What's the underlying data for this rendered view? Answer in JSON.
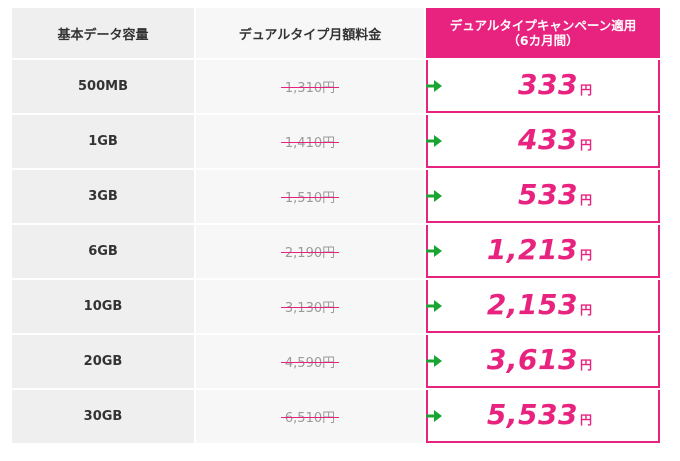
{
  "header": {
    "col_capacity": "基本データ容量",
    "col_monthly": "デュアルタイプ月額料金",
    "col_campaign_line1": "デュアルタイプキャンペーン適用",
    "col_campaign_line2": "（6カ月間）"
  },
  "rows": [
    {
      "capacity": "500MB",
      "regular_price": "1,310円",
      "campaign_price": "333",
      "unit": "円"
    },
    {
      "capacity": "1GB",
      "regular_price": "1,410円",
      "campaign_price": "433",
      "unit": "円"
    },
    {
      "capacity": "3GB",
      "regular_price": "1,510円",
      "campaign_price": "533",
      "unit": "円"
    },
    {
      "capacity": "6GB",
      "regular_price": "2,190円",
      "campaign_price": "1,213",
      "unit": "円"
    },
    {
      "capacity": "10GB",
      "regular_price": "3,130円",
      "campaign_price": "2,153",
      "unit": "円"
    },
    {
      "capacity": "20GB",
      "regular_price": "4,590円",
      "campaign_price": "3,613",
      "unit": "円"
    },
    {
      "capacity": "30GB",
      "regular_price": "6,510円",
      "campaign_price": "5,533",
      "unit": "円"
    }
  ],
  "colors": {
    "accent": "#e8237f",
    "arrow": "#1aa533",
    "cell_gray": "#efefef",
    "cell_light": "#f7f7f7"
  },
  "icons": {
    "arrow": "arrow-right-icon"
  }
}
